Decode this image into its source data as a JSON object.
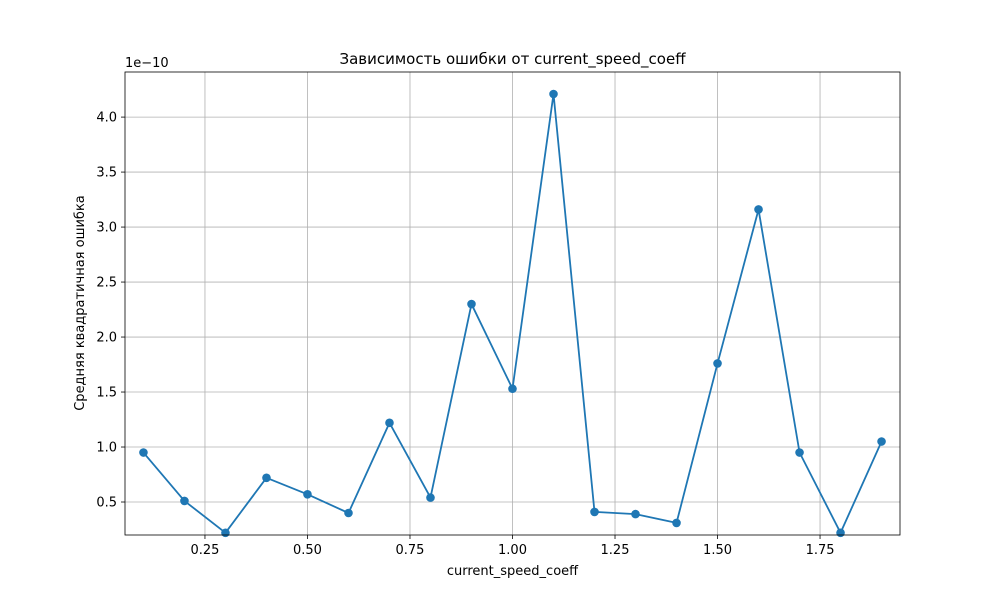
{
  "chart_data": {
    "type": "line",
    "title": "Зависимость ошибки от current_speed_coeff",
    "xlabel": "current_speed_coeff",
    "ylabel": "Средняя квадратичная ошибка",
    "y_offset_label": "1e−10",
    "y_scale_factor": 1e-10,
    "xlim": [
      0.055,
      1.945
    ],
    "ylim": [
      2e-11,
      4.41e-10
    ],
    "x_ticks": [
      0.25,
      0.5,
      0.75,
      1.0,
      1.25,
      1.5,
      1.75
    ],
    "x_tick_labels": [
      "0.25",
      "0.50",
      "0.75",
      "1.00",
      "1.25",
      "1.50",
      "1.75"
    ],
    "y_ticks": [
      5e-11,
      1e-10,
      1.5e-10,
      2e-10,
      2.5e-10,
      3e-10,
      3.5e-10,
      4e-10
    ],
    "y_tick_labels": [
      "0.5",
      "1.0",
      "1.5",
      "2.0",
      "2.5",
      "3.0",
      "3.5",
      "4.0"
    ],
    "grid": true,
    "marker": "circle",
    "color": "#1f77b4",
    "grid_color": "#b0b0b0",
    "series": [
      {
        "x": [
          0.1,
          0.2,
          0.3,
          0.4,
          0.5,
          0.6,
          0.7,
          0.8,
          0.9,
          1.0,
          1.1,
          1.2,
          1.3,
          1.4,
          1.5,
          1.6,
          1.7,
          1.8,
          1.9
        ],
        "y": [
          9.5e-11,
          5.1e-11,
          2.2e-11,
          7.2e-11,
          5.7e-11,
          4e-11,
          1.22e-10,
          5.4e-11,
          2.3e-10,
          1.53e-10,
          4.21e-10,
          4.1e-11,
          3.9e-11,
          3.1e-11,
          1.76e-10,
          3.16e-10,
          9.5e-11,
          2.2e-11,
          1.05e-10
        ]
      }
    ]
  }
}
